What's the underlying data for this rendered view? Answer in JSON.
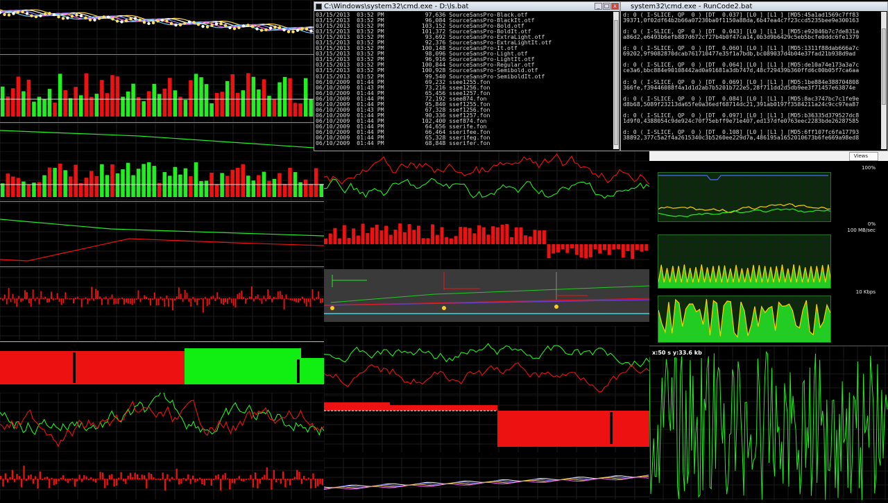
{
  "windows": {
    "cmd_ls": {
      "title": "C:\\Windows\\system32\\cmd.exe - D:\\ls.bat",
      "lines": [
        "03/15/2013  03:52 PM            97,636 SourceSansPro-Black.otf",
        "03/15/2013  03:52 PM            96,084 SourceSansPro-BlackIt.otf",
        "03/15/2013  03:52 PM           103,152 SourceSansPro-Bold.otf",
        "03/15/2013  03:52 PM           101,372 SourceSansPro-BoldIt.otf",
        "03/15/2013  03:52 PM            93,692 SourceSansPro-ExtraLight.otf",
        "03/15/2013  03:52 PM            92,376 SourceSansPro-ExtraLightIt.otf",
        "03/15/2013  03:52 PM           100,148 SourceSansPro-It.otf",
        "03/15/2013  03:52 PM            98,096 SourceSansPro-Light.otf",
        "03/15/2013  03:52 PM            96,916 SourceSansPro-LightIt.otf",
        "03/15/2013  03:52 PM           100,844 SourceSansPro-Regular.otf",
        "03/15/2013  03:52 PM           100,928 SourceSansPro-Semibold.otf",
        "03/15/2013  03:52 PM            99,540 SourceSansPro-SemiboldIt.otf",
        "06/10/2009  01:44 PM            69,232 ssee1255.fon",
        "06/10/2009  01:43 PM            73,216 ssee1256.fon",
        "06/10/2009  01:44 PM            65,456 ssee1257.fon",
        "06/10/2009  01:44 PM            72,192 ssee874.fon",
        "06/10/2009  01:44 PM            95,840 ssef1255.fon",
        "06/10/2009  01:43 PM            67,328 ssef1256.fon",
        "06/10/2009  01:44 PM            90,336 ssef1257.fon",
        "06/10/2009  01:44 PM           102,400 ssef874.fon",
        "06/10/2009  01:44 PM            64,656 sserife.fon",
        "06/10/2009  01:44 PM            66,464 sserifee.fon",
        "06/10/2009  01:44 PM            65,328 sserifeg.fon",
        "06/10/2009  01:44 PM            68,848 sserifer.fon"
      ]
    },
    "cmd_runcode": {
      "title": "system32\\cmd.exe - RunCode2.bat",
      "lines": [
        "d: 0 ( I-SLICE, QP  0 ) [DT  0.037] [L0 ] [L1 ] [MD5:45a1ad1569c7ff83",
        "39371,0f02df64b2b66a07230ba0f1150a88da,6b47ea4c7f23ccd5235bee9e300163",
        "",
        "d: 0 ( I-SLICE, QP  0 ) [DT  0.043] [L0 ] [L1 ] [MD5:e92046b7c7de831a",
        "a86d2,e6493b6efb887d672cf27b4b0f47ca14,0b3d9b6429c5eb5bcfe0ddc6fe1379",
        "",
        "d: 0 ( I-SLICE, QP  0 ) [DT  0.060] [L0 ] [L1 ] [MD5:1311f88dab666a7c",
        "69202,9f9082870dcab761710477e35f1a7bdb,bc089037d4b04e37fad21b938d9ad",
        "",
        "d: 0 ( I-SLICE, QP  0 ) [DT  0.064] [L0 ] [L1 ] [MD5:de10a74e173a3a7c",
        "ce3a6,bbc884e90108442ad0a91681a3db747d,48c729439b360ffd6c00b05f7ca6aa",
        "",
        "d: 0 ( I-SLICE, QP  0 ) [DT  0.069] [L0 ] [L1 ] [MD5:1be884e388704808",
        "366fe,f39446088f4a1d1d2ab7b5201b722e5,28f711dd2d5db9ee3f71457e63874e",
        "",
        "d: 0 ( I-SLICE, QP  0 ) [DT  0.084] [L0 ] [L1 ] [MD5:8ac3747bc7c1fe9e",
        "d8b68,5089f23213da65fe0a36edf68714dc21,391ab0197f3584211a24c9cc97ea87",
        "",
        "d: 0 ( I-SLICE, QP  0 ) [DT  0.097] [L0 ] [L1 ] [MD5:b36335d379527dc8",
        "1d9f0,4388054c9de924c70f75ebff9e71e407,ed137dfe0763eec2283bde26287585",
        "",
        "d: 0 ( I-SLICE, QP  0 ) [DT  0.108] [L0 ] [L1 ] [MD5:6ff107fc6fa17793",
        "38892,377c5a2f4a2615340c3b5260ee229d7a,486195a1652010673b6fe669a98ed8"
      ]
    }
  },
  "perf": {
    "views_label": "Views",
    "cpu_top": "100%",
    "cpu_bottom": "0%",
    "disk_label": "100 MB/sec",
    "net_label": "10 Kbps"
  },
  "net_monitor": {
    "readout": "x:50 s  y:33.6 kb"
  },
  "colors": {
    "up": "#22ee22",
    "down": "#ee1111",
    "grid": "#1e1e1e"
  },
  "icons": [
    "console-icon",
    "minimize-icon",
    "maximize-icon",
    "close-icon"
  ]
}
